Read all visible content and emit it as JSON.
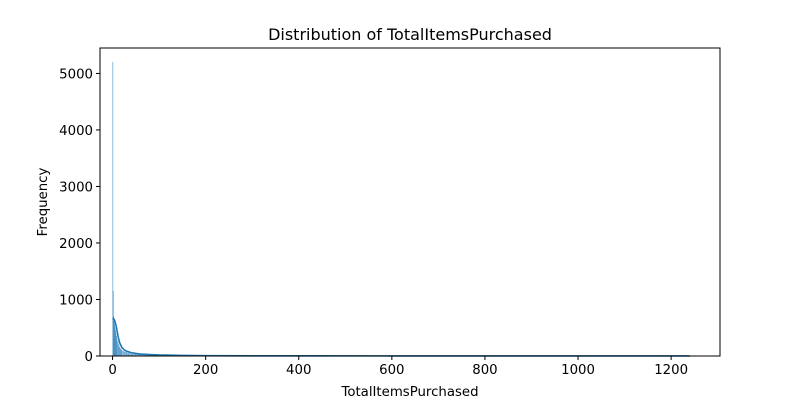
{
  "chart_data": {
    "type": "bar",
    "title": "Distribution of TotalItemsPurchased",
    "xlabel": "TotalItemsPurchased",
    "ylabel": "Frequency",
    "xlim": [
      -27,
      1305
    ],
    "ylim": [
      0,
      5450
    ],
    "xticks": [
      0,
      200,
      400,
      600,
      800,
      1000,
      1200
    ],
    "yticks": [
      0,
      1000,
      2000,
      3000,
      4000,
      5000
    ],
    "grid": false,
    "bar_color": "#1f77b4",
    "line_color": "#1f77b4",
    "bins": [
      {
        "x0": 0,
        "x1": 1,
        "value": 5200
      },
      {
        "x0": 1,
        "x1": 2,
        "value": 1150
      },
      {
        "x0": 2,
        "x1": 3,
        "value": 700
      },
      {
        "x0": 3,
        "x1": 4,
        "value": 620
      },
      {
        "x0": 4,
        "x1": 5,
        "value": 560
      },
      {
        "x0": 5,
        "x1": 6,
        "value": 500
      },
      {
        "x0": 6,
        "x1": 7,
        "value": 450
      },
      {
        "x0": 7,
        "x1": 8,
        "value": 400
      },
      {
        "x0": 8,
        "x1": 9,
        "value": 350
      },
      {
        "x0": 9,
        "x1": 10,
        "value": 300
      },
      {
        "x0": 10,
        "x1": 12,
        "value": 250
      },
      {
        "x0": 12,
        "x1": 14,
        "value": 200
      },
      {
        "x0": 14,
        "x1": 16,
        "value": 160
      },
      {
        "x0": 16,
        "x1": 18,
        "value": 130
      },
      {
        "x0": 18,
        "x1": 20,
        "value": 110
      },
      {
        "x0": 20,
        "x1": 25,
        "value": 90
      },
      {
        "x0": 25,
        "x1": 30,
        "value": 70
      },
      {
        "x0": 30,
        "x1": 35,
        "value": 55
      },
      {
        "x0": 35,
        "x1": 40,
        "value": 45
      },
      {
        "x0": 40,
        "x1": 50,
        "value": 35
      },
      {
        "x0": 50,
        "x1": 60,
        "value": 25
      },
      {
        "x0": 60,
        "x1": 80,
        "value": 18
      },
      {
        "x0": 80,
        "x1": 100,
        "value": 12
      },
      {
        "x0": 100,
        "x1": 150,
        "value": 8
      },
      {
        "x0": 150,
        "x1": 200,
        "value": 5
      },
      {
        "x0": 200,
        "x1": 300,
        "value": 3
      },
      {
        "x0": 300,
        "x1": 500,
        "value": 2
      },
      {
        "x0": 500,
        "x1": 800,
        "value": 1
      },
      {
        "x0": 800,
        "x1": 1240,
        "value": 1
      }
    ],
    "kde": {
      "x": [
        0,
        2,
        4,
        6,
        8,
        10,
        12,
        15,
        20,
        25,
        30,
        40,
        50,
        60,
        80,
        100,
        150,
        200,
        300,
        400,
        600,
        800,
        1000,
        1240
      ],
      "y": [
        650,
        660,
        640,
        590,
        520,
        430,
        340,
        240,
        150,
        110,
        85,
        60,
        45,
        35,
        25,
        18,
        10,
        6,
        4,
        3,
        2,
        2,
        2,
        1
      ]
    }
  }
}
